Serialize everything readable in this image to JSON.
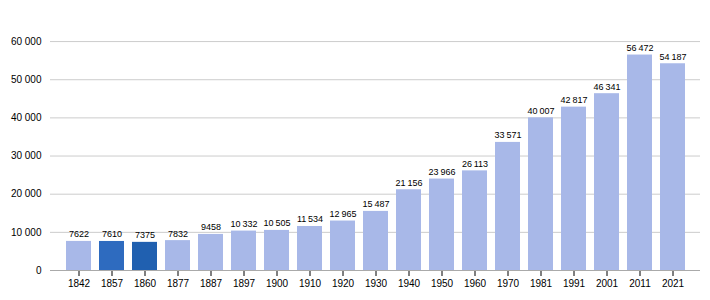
{
  "chart_data": {
    "type": "bar",
    "categories": [
      "1842",
      "1857",
      "1860",
      "1877",
      "1887",
      "1897",
      "1900",
      "1910",
      "1920",
      "1930",
      "1940",
      "1950",
      "1960",
      "1970",
      "1981",
      "1991",
      "2001",
      "2011",
      "2021"
    ],
    "values": [
      7622,
      7610,
      7375,
      7832,
      9458,
      10332,
      10505,
      11534,
      12965,
      15487,
      21156,
      23966,
      26113,
      33571,
      40007,
      42817,
      46341,
      56472,
      54187
    ],
    "value_labels": [
      "7622",
      "7610",
      "7375",
      "7832",
      "9458",
      "10 332",
      "10 505",
      "11 534",
      "12 965",
      "15 487",
      "21 156",
      "23 966",
      "26 113",
      "33 571",
      "40 007",
      "42 817",
      "46 341",
      "56 472",
      "54 187"
    ],
    "colors": [
      "#a8b8e8",
      "#2e6bbf",
      "#2060b0",
      "#a8b8e8",
      "#a8b8e8",
      "#a8b8e8",
      "#a8b8e8",
      "#a8b8e8",
      "#a8b8e8",
      "#a8b8e8",
      "#a8b8e8",
      "#a8b8e8",
      "#a8b8e8",
      "#a8b8e8",
      "#a8b8e8",
      "#a8b8e8",
      "#a8b8e8",
      "#a8b8e8",
      "#a8b8e8"
    ],
    "ylim": [
      0,
      65000
    ],
    "yticks": [
      0,
      {
        "value": 10000,
        "label": "10 000"
      },
      {
        "value": 20000,
        "label": "20 000"
      },
      {
        "value": 30000,
        "label": "30 000"
      },
      {
        "value": 40000,
        "label": "40 000"
      },
      {
        "value": 50000,
        "label": "50 000"
      },
      {
        "value": 60000,
        "label": "60 000"
      }
    ],
    "grid": true,
    "data_labels": true
  }
}
